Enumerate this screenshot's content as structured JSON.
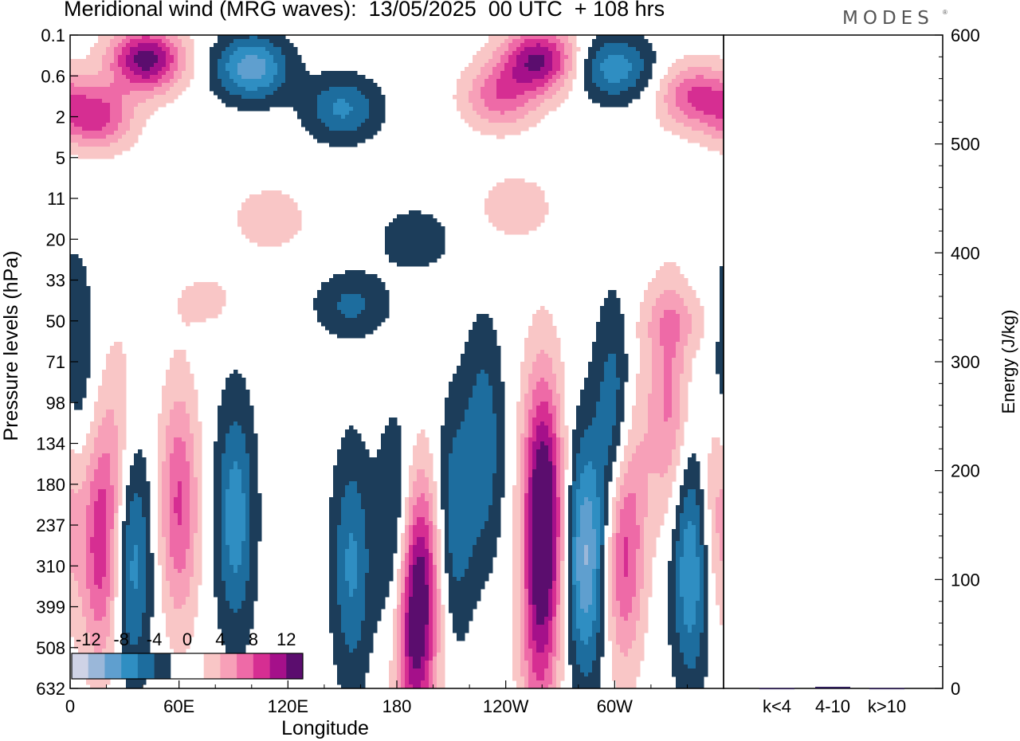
{
  "header": {
    "title": "Meridional wind (MRG waves):  13/05/2025  00 UTC  + 108 hrs",
    "logo": "MODES",
    "logo_mark": "®"
  },
  "palette": {
    "neg": [
      "#1c3d5a",
      "#1d6d9e",
      "#2f8ec2",
      "#5f9fcf",
      "#9ab7d9",
      "#cfd3e6"
    ],
    "pos": [
      "#f9c6c6",
      "#f7a0b8",
      "#ee6aa7",
      "#d62e92",
      "#a5108a",
      "#5b0d6e"
    ],
    "bar": "#2b1a55"
  },
  "chart_data": [
    {
      "type": "heatmap",
      "title": "Meridional wind (MRG waves):  13/05/2025  00 UTC  + 108 hrs",
      "xlabel": "Longitude",
      "ylabel": "Pressure levels (hPa)",
      "x_ticks": [
        "0",
        "60E",
        "120E",
        "180",
        "120W",
        "60W"
      ],
      "x_tick_lon": [
        0,
        60,
        120,
        180,
        240,
        300
      ],
      "xlim": [
        0,
        360
      ],
      "y_ticks": [
        "0.1",
        "0.6",
        "2",
        "5",
        "11",
        "20",
        "33",
        "50",
        "71",
        "98",
        "134",
        "180",
        "237",
        "310",
        "399",
        "508",
        "632"
      ],
      "colorbar": {
        "labels": [
          "-12",
          "-8",
          "-4",
          "0",
          "4",
          "8",
          "12"
        ],
        "levels": [
          -14,
          -12,
          -10,
          -8,
          -6,
          -4,
          -2,
          0,
          2,
          4,
          6,
          8,
          10,
          12,
          14
        ]
      },
      "features": [
        {
          "lon": 42,
          "lev": 0.6,
          "v": 13
        },
        {
          "lon": 14,
          "lev": 2.0,
          "v": 9
        },
        {
          "lon": 100,
          "lev": 0.8,
          "v": -9
        },
        {
          "lon": 150,
          "lev": 1.8,
          "v": -6
        },
        {
          "lon": 258,
          "lev": 0.6,
          "v": 12
        },
        {
          "lon": 237,
          "lev": 1.5,
          "v": 7
        },
        {
          "lon": 300,
          "lev": 0.8,
          "v": -7
        },
        {
          "lon": 345,
          "lev": 1.5,
          "v": 8
        },
        {
          "lon": 245,
          "lev": 4.2,
          "v": 3
        },
        {
          "lon": 110,
          "lev": 4.5,
          "v": 3
        },
        {
          "lon": 190,
          "lev": 5.0,
          "v": -3
        },
        {
          "lon": 155,
          "lev": 6.6,
          "v": -4
        },
        {
          "lon": 335,
          "lev": 7.0,
          "v": 3
        },
        {
          "lon": 27,
          "lev": 10.0,
          "v": 3
        },
        {
          "lon": 313,
          "lev": 9.7,
          "v": 2
        },
        {
          "lon": 180,
          "lev": 12.3,
          "v": -5
        },
        {
          "lon": 193,
          "lev": 13.5,
          "v": 11
        },
        {
          "lon": 155,
          "lev": 13.0,
          "v": -6
        },
        {
          "lon": 261,
          "lev": 12.2,
          "v": 11
        },
        {
          "lon": 260,
          "lev": 10.3,
          "v": 6
        },
        {
          "lon": 284,
          "lev": 12.8,
          "v": -10
        },
        {
          "lon": 305,
          "lev": 12.5,
          "v": 9
        },
        {
          "lon": 342,
          "lev": 13.0,
          "v": -8
        },
        {
          "lon": 300,
          "lev": 9.5,
          "v": -6
        },
        {
          "lon": 330,
          "lev": 9.0,
          "v": 6
        },
        {
          "lon": 17,
          "lev": 12.5,
          "v": 9
        },
        {
          "lon": 34,
          "lev": 12.8,
          "v": -7
        },
        {
          "lon": 60,
          "lev": 11.5,
          "v": 8
        },
        {
          "lon": 91,
          "lev": 11.8,
          "v": -7
        },
        {
          "lon": 212,
          "lev": 11.8,
          "v": -5
        },
        {
          "lon": 228,
          "lev": 10.0,
          "v": -5
        },
        {
          "lon": 188,
          "lev": 15.0,
          "v": 7
        },
        {
          "lon": 258,
          "lev": 15.0,
          "v": 6
        },
        {
          "lon": 3,
          "lev": 8.2,
          "v": -4
        },
        {
          "lon": 76,
          "lev": 6.5,
          "v": 2
        },
        {
          "lon": 357,
          "lev": 11.5,
          "v": 5
        }
      ]
    },
    {
      "type": "bar",
      "ylabel": "Energy (J/kg)",
      "categories": [
        "k<4",
        "4-10",
        "k>10"
      ],
      "values": [
        0.3,
        1.5,
        0.3
      ],
      "ylim": [
        0,
        600
      ],
      "y_ticks": [
        "0",
        "100",
        "200",
        "300",
        "400",
        "500",
        "600"
      ]
    }
  ]
}
